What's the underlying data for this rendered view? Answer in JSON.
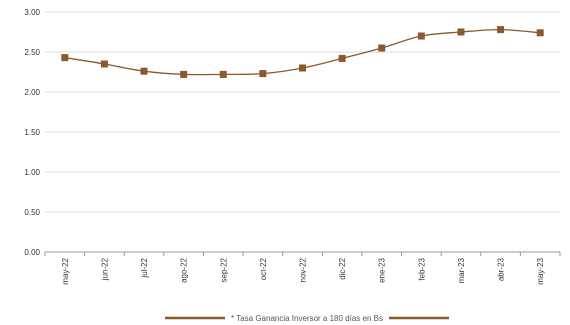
{
  "chart_data": {
    "type": "line",
    "categories": [
      "may-22",
      "jun-22",
      "jul-22",
      "ago-22",
      "sep-22",
      "oct-22",
      "nov-22",
      "dic-22",
      "ene-23",
      "feb-23",
      "mar-23",
      "abr-23",
      "may-23"
    ],
    "series": [
      {
        "name": "* Tasa Ganancia Inversor a 180 días  en Bs",
        "values": [
          2.43,
          2.35,
          2.26,
          2.22,
          2.22,
          2.23,
          2.3,
          2.42,
          2.55,
          2.7,
          2.75,
          2.78,
          2.74
        ]
      }
    ],
    "yticks": [
      "0.00",
      "0.50",
      "1.00",
      "1.50",
      "2.00",
      "2.50",
      "3.00"
    ],
    "ylim": [
      0,
      3
    ],
    "grid": true,
    "legend_position": "bottom",
    "colors": {
      "line": "#8b5a2b",
      "marker": "#8b5a2b",
      "grid": "#d9d9d9",
      "axis": "#999999"
    },
    "marker": "square"
  }
}
